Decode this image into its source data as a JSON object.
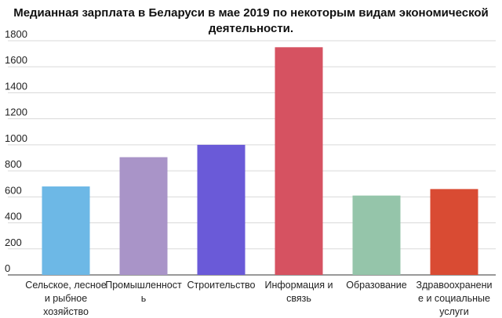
{
  "chart_data": {
    "type": "bar",
    "title_lines": [
      "Медианная зарплата в Беларуси в мае 2019 по некоторым видам экономической",
      "деятельности."
    ],
    "xlabel": "",
    "ylabel": "",
    "ylim": [
      0,
      1800
    ],
    "yticks": [
      "0",
      "200",
      "400",
      "600",
      "800",
      "1000",
      "1200",
      "1400",
      "1600",
      "1800"
    ],
    "grid": true,
    "categories": [
      [
        "Сельское, лесное",
        "и рыбное",
        "хозяйство"
      ],
      [
        "Промышленност",
        "ь"
      ],
      [
        "Строительство"
      ],
      [
        "Информация и",
        "связь"
      ],
      [
        "Образование"
      ],
      [
        "Здравоохранени",
        "е и социальные",
        "услуги"
      ]
    ],
    "values": [
      680,
      905,
      1000,
      1750,
      610,
      660
    ],
    "colors": [
      "#6db8e6",
      "#a994c8",
      "#6a5ad8",
      "#d65261",
      "#95c5aa",
      "#d94b33"
    ]
  }
}
